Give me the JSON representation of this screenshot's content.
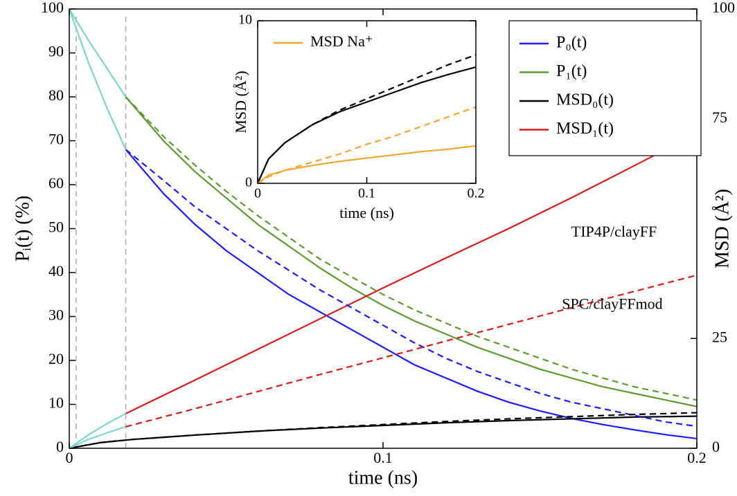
{
  "chart_data": [
    {
      "type": "line",
      "xlabel": "time (ns)",
      "ylabel": "Pᵢ(t) (%)",
      "y2label": "MSD (Å²)",
      "xlim": [
        0,
        0.2
      ],
      "xticks": [
        0,
        0.1,
        0.2
      ],
      "ylim": [
        0,
        100
      ],
      "yticks": [
        0,
        10,
        20,
        30,
        40,
        50,
        60,
        70,
        80,
        90,
        100
      ],
      "y2lim": [
        0,
        100
      ],
      "y2ticks": [
        0,
        25,
        75,
        100
      ],
      "legend": "upper right",
      "vlines": [
        0.0022,
        0.018
      ],
      "annotations": [
        {
          "text": "TIP4P/clayFF",
          "x": 0.16,
          "y": 49
        },
        {
          "text": "SPC/clayFFmod",
          "x": 0.157,
          "y": 32.5
        }
      ],
      "series": [
        {
          "name": "P₀(t)",
          "color": "#1a1aff",
          "dashed": false,
          "x": [
            0.018,
            0.03,
            0.04,
            0.05,
            0.06,
            0.07,
            0.08,
            0.09,
            0.1,
            0.11,
            0.12,
            0.13,
            0.14,
            0.15,
            0.16,
            0.17,
            0.18,
            0.19,
            0.2
          ],
          "values": [
            68,
            58,
            51,
            45,
            40,
            35,
            31,
            27,
            23,
            19,
            16,
            13,
            10.5,
            8.5,
            6.8,
            5.4,
            4.2,
            3.1,
            2.2
          ]
        },
        {
          "name": "P₁(t)",
          "color": "#5c9a30",
          "dashed": false,
          "x": [
            0.018,
            0.03,
            0.04,
            0.05,
            0.06,
            0.07,
            0.08,
            0.09,
            0.1,
            0.11,
            0.12,
            0.13,
            0.14,
            0.15,
            0.16,
            0.17,
            0.18,
            0.19,
            0.2
          ],
          "values": [
            80,
            70,
            63,
            57,
            51,
            46,
            41,
            36.5,
            32.5,
            29,
            26,
            23,
            20.5,
            18,
            16,
            14,
            12.5,
            11,
            9.5
          ]
        },
        {
          "name": "MSD₀(t)",
          "color": "#000000",
          "dashed": false,
          "axis": "y2",
          "x": [
            0,
            0.01,
            0.02,
            0.04,
            0.06,
            0.08,
            0.1,
            0.12,
            0.14,
            0.16,
            0.18,
            0.2
          ],
          "values": [
            0,
            1.3,
            2,
            3,
            3.9,
            4.6,
            5.2,
            5.8,
            6.3,
            6.7,
            7.1,
            7.3
          ]
        },
        {
          "name": "MSD₁(t)",
          "color": "#d41c1c",
          "dashed": false,
          "axis": "y2",
          "x": [
            0.018,
            0.04,
            0.06,
            0.08,
            0.1,
            0.12,
            0.14,
            0.16,
            0.18,
            0.2
          ],
          "values": [
            7.9,
            15.5,
            22.5,
            29.5,
            36.5,
            43.3,
            50,
            57,
            64.3,
            71.7
          ]
        },
        {
          "color": "#1a1aff",
          "dashed": true,
          "x": [
            0.018,
            0.03,
            0.04,
            0.05,
            0.06,
            0.07,
            0.08,
            0.09,
            0.1,
            0.11,
            0.12,
            0.13,
            0.14,
            0.15,
            0.16,
            0.17,
            0.18,
            0.19,
            0.2
          ],
          "values": [
            68,
            61,
            55,
            50,
            45,
            40.5,
            36,
            32,
            28,
            24,
            20.5,
            17.5,
            15,
            12.5,
            10.5,
            9,
            7.5,
            6,
            5
          ]
        },
        {
          "color": "#5c9a30",
          "dashed": true,
          "x": [
            0.018,
            0.03,
            0.04,
            0.05,
            0.06,
            0.07,
            0.08,
            0.09,
            0.1,
            0.11,
            0.12,
            0.13,
            0.14,
            0.15,
            0.16,
            0.17,
            0.18,
            0.19,
            0.2
          ],
          "values": [
            80,
            71,
            64.5,
            58.5,
            53,
            48,
            43,
            39,
            35,
            31.5,
            28.5,
            25.5,
            23,
            20.5,
            18,
            16,
            14,
            12.5,
            11
          ]
        },
        {
          "color": "#000000",
          "dashed": true,
          "axis": "y2",
          "x": [
            0,
            0.01,
            0.02,
            0.04,
            0.06,
            0.08,
            0.1,
            0.12,
            0.14,
            0.16,
            0.18,
            0.2
          ],
          "values": [
            0,
            1.3,
            2,
            3,
            3.9,
            4.7,
            5.4,
            6.1,
            6.7,
            7.2,
            7.7,
            8.1
          ]
        },
        {
          "color": "#d41c1c",
          "dashed": true,
          "axis": "y2",
          "x": [
            0.018,
            0.04,
            0.06,
            0.08,
            0.1,
            0.12,
            0.14,
            0.16,
            0.18,
            0.2
          ],
          "values": [
            4.9,
            9,
            12.9,
            16.8,
            20.6,
            24.4,
            28.2,
            32,
            35.7,
            39.4
          ]
        },
        {
          "color": "#7fd4c8",
          "dashed": false,
          "x": [
            0,
            0.006,
            0.012,
            0.018
          ],
          "values": [
            100,
            88,
            77.5,
            68
          ]
        },
        {
          "color": "#7fd4c8",
          "dashed": false,
          "x": [
            0,
            0.006,
            0.012,
            0.018
          ],
          "values": [
            100,
            93,
            86.5,
            80
          ]
        },
        {
          "color": "#7fd4c8",
          "dashed": false,
          "axis": "y2",
          "x": [
            0,
            0.006,
            0.012,
            0.018
          ],
          "values": [
            0,
            3,
            5.6,
            7.9
          ]
        },
        {
          "color": "#7fd4c8",
          "dashed": false,
          "axis": "y2",
          "x": [
            0,
            0.006,
            0.012,
            0.018
          ],
          "values": [
            0,
            2,
            3.5,
            4.9
          ]
        }
      ]
    },
    {
      "type": "line",
      "xlabel": "time (ns)",
      "ylabel": "MSD (Å²)",
      "xlim": [
        0,
        0.2
      ],
      "xticks": [
        0,
        0.1,
        0.2
      ],
      "ylim": [
        0,
        10
      ],
      "yticks": [
        0,
        10
      ],
      "legend": "upper left",
      "series": [
        {
          "color": "#000000",
          "dashed": false,
          "x": [
            0,
            0.01,
            0.025,
            0.05,
            0.075,
            0.1,
            0.125,
            0.15,
            0.175,
            0.2
          ],
          "values": [
            0,
            1.5,
            2.5,
            3.6,
            4.4,
            5.0,
            5.6,
            6.2,
            6.7,
            7.15
          ]
        },
        {
          "color": "#000000",
          "dashed": true,
          "x": [
            0,
            0.01,
            0.025,
            0.05,
            0.075,
            0.1,
            0.125,
            0.15,
            0.175,
            0.2
          ],
          "values": [
            0,
            1.5,
            2.5,
            3.6,
            4.5,
            5.2,
            5.9,
            6.6,
            7.3,
            7.9
          ]
        },
        {
          "name": "MSD Na⁺",
          "color": "#f0a830",
          "dashed": false,
          "x": [
            0,
            0.01,
            0.025,
            0.05,
            0.075,
            0.1,
            0.125,
            0.15,
            0.175,
            0.2
          ],
          "values": [
            0,
            0.5,
            0.8,
            1.1,
            1.35,
            1.55,
            1.75,
            1.95,
            2.1,
            2.3
          ]
        },
        {
          "color": "#f0a830",
          "dashed": true,
          "x": [
            0,
            0.01,
            0.025,
            0.05,
            0.075,
            0.1,
            0.125,
            0.15,
            0.175,
            0.2
          ],
          "values": [
            0,
            0.4,
            0.8,
            1.3,
            1.8,
            2.4,
            2.9,
            3.5,
            4.1,
            4.7
          ]
        }
      ]
    }
  ]
}
